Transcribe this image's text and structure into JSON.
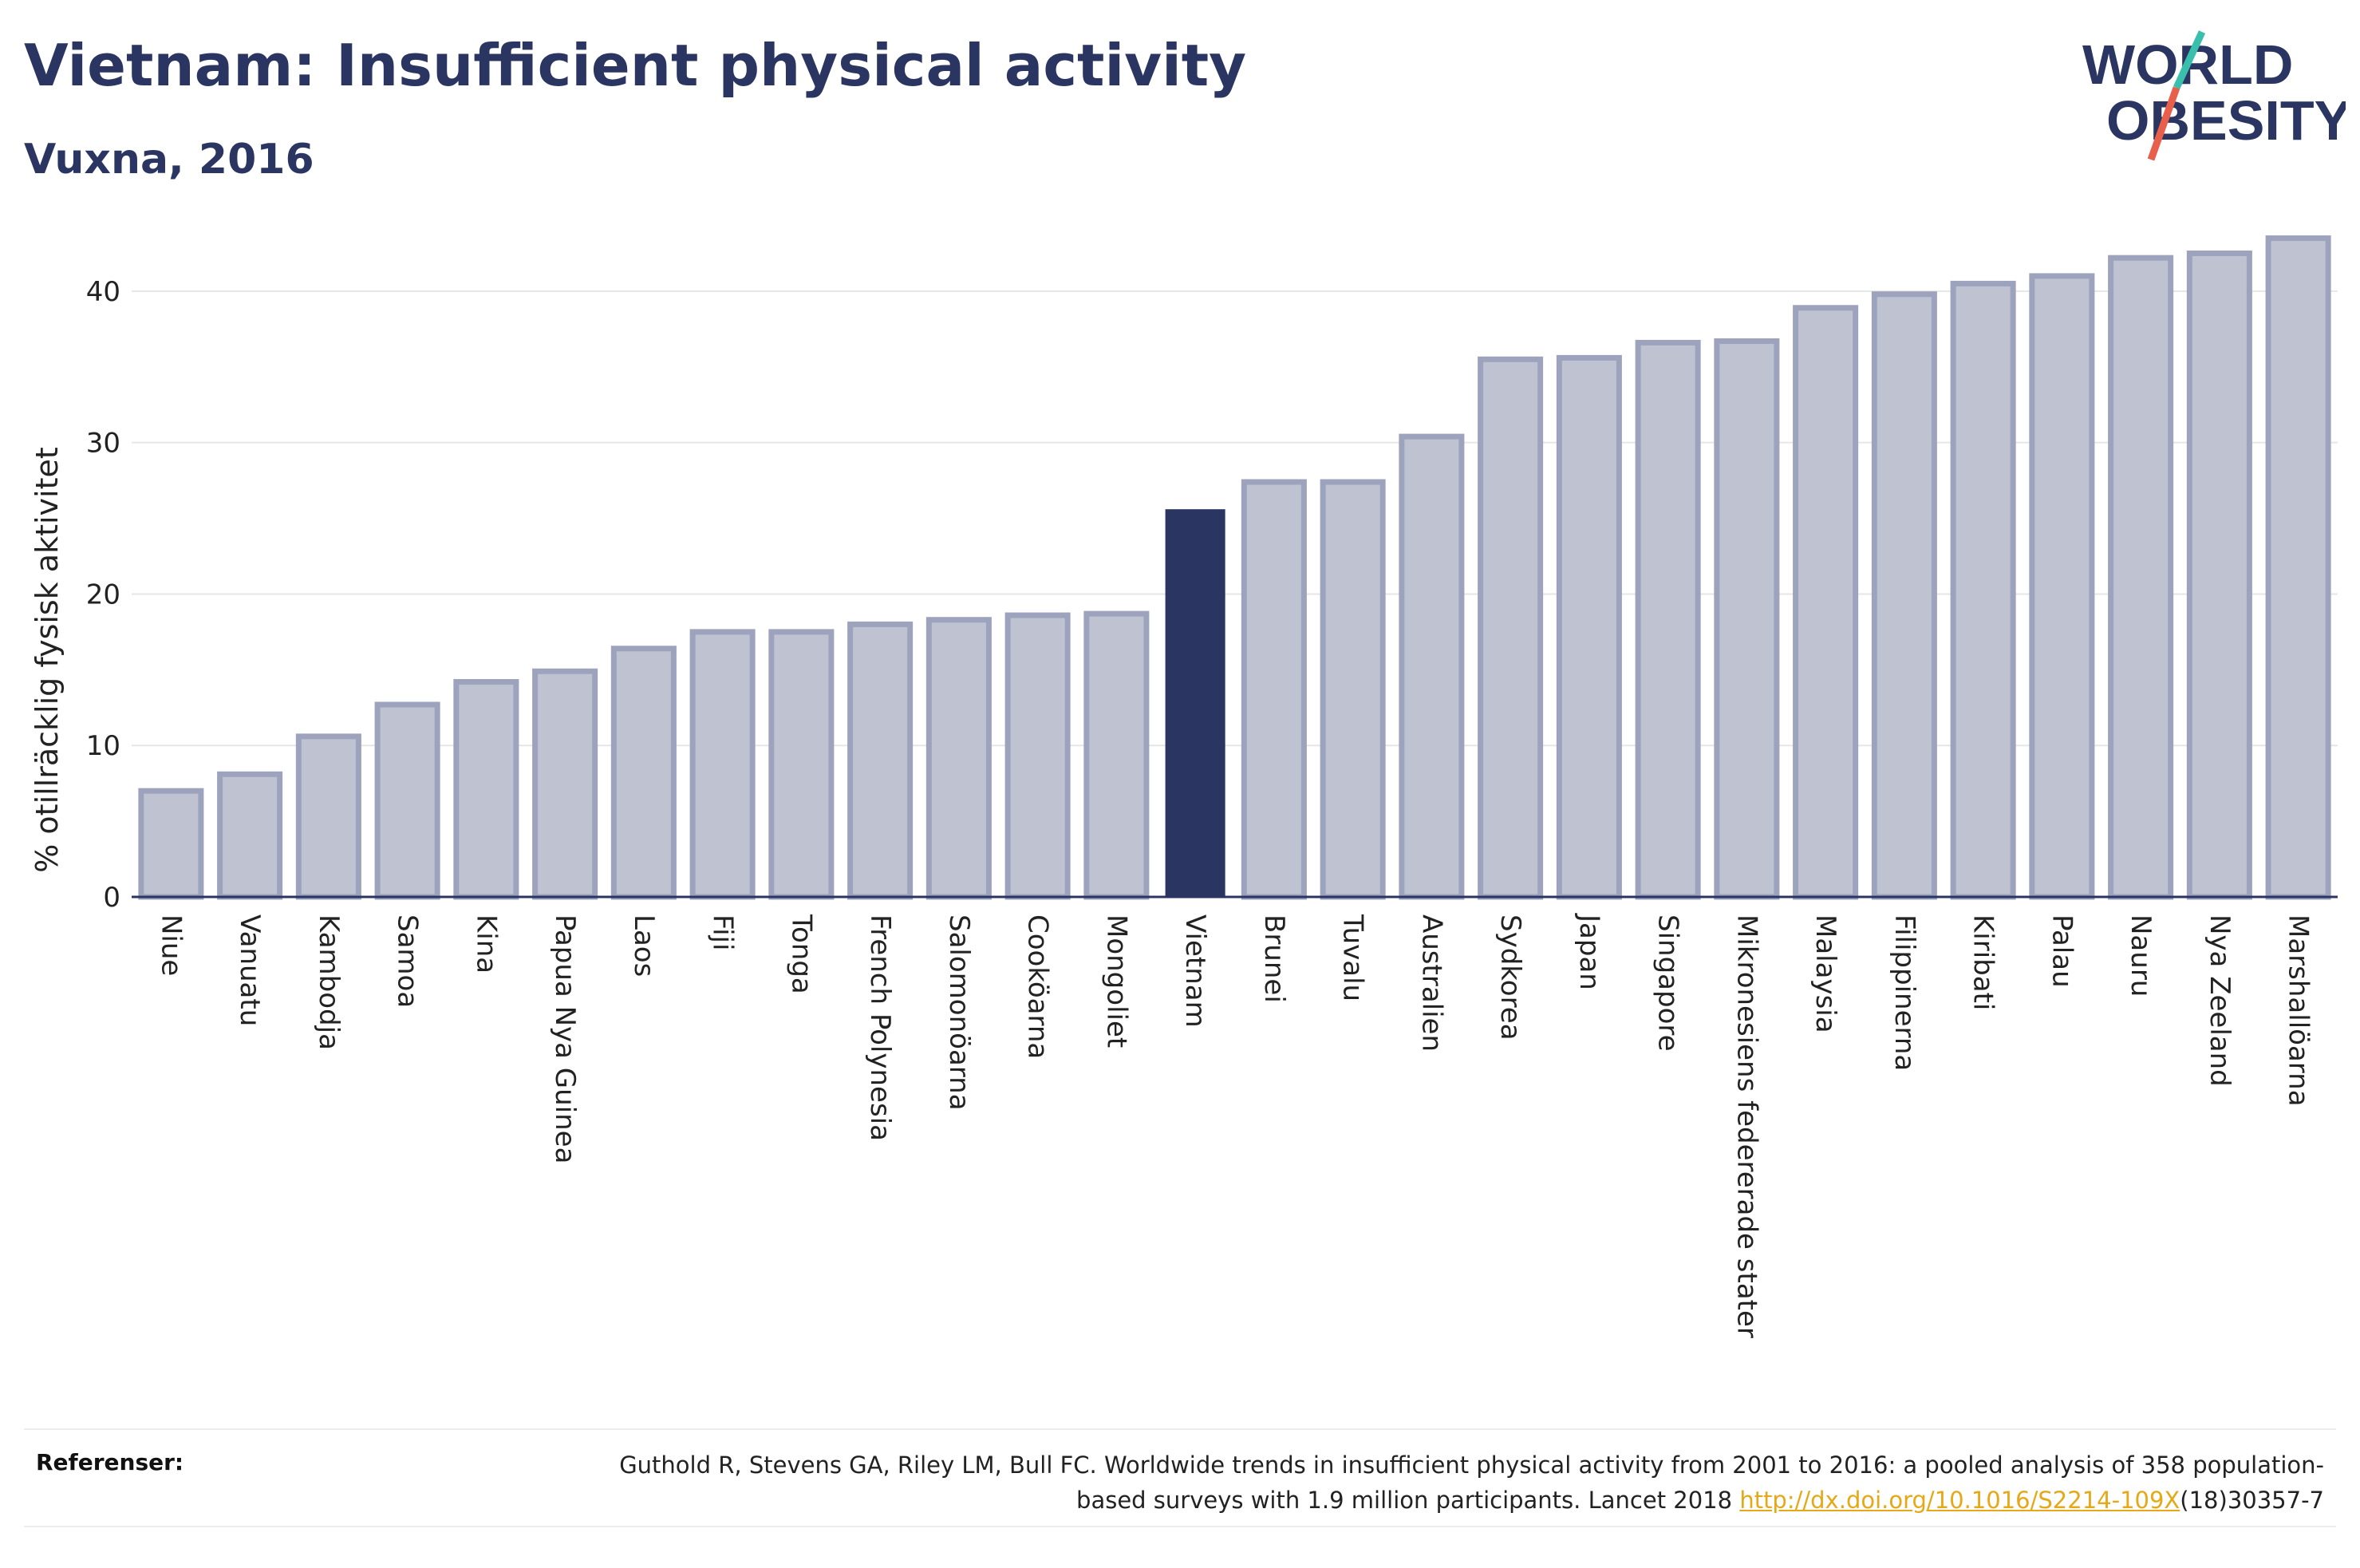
{
  "header": {
    "title": "Vietnam: Insufficient physical activity",
    "subtitle": "Vuxna, 2016"
  },
  "logo": {
    "line1": "WORLD",
    "line2": "OBESITY"
  },
  "chart_data": {
    "type": "bar",
    "title": "Vietnam: Insufficient physical activity",
    "subtitle": "Vuxna, 2016",
    "xlabel": "",
    "ylabel": "% otillräcklig fysisk aktivitet",
    "ylim": [
      0,
      45
    ],
    "yticks": [
      0,
      10,
      20,
      30,
      40
    ],
    "grid": true,
    "highlight": "Vietnam",
    "categories": [
      "Niue",
      "Vanuatu",
      "Kambodja",
      "Samoa",
      "Kina",
      "Papua Nya Guinea",
      "Laos",
      "Fiji",
      "Tonga",
      "French Polynesia",
      "Salomonöarna",
      "Cooköarna",
      "Mongoliet",
      "Vietnam",
      "Brunei",
      "Tuvalu",
      "Australien",
      "Sydkorea",
      "Japan",
      "Singapore",
      "Mikronesiens federerade stater",
      "Malaysia",
      "Filippinerna",
      "Kiribati",
      "Palau",
      "Nauru",
      "Nya Zeeland",
      "Marshallöarna"
    ],
    "values": [
      7.0,
      8.1,
      10.6,
      12.7,
      14.2,
      14.9,
      16.4,
      17.5,
      17.5,
      18.0,
      18.3,
      18.6,
      18.7,
      25.6,
      27.4,
      27.4,
      30.4,
      35.5,
      35.6,
      36.6,
      36.7,
      38.9,
      39.8,
      40.5,
      41.0,
      42.2,
      42.5,
      43.5
    ]
  },
  "colors": {
    "bar": "#bfc3d1",
    "bar_outline": "#9da3bc",
    "highlight": "#2b3562",
    "grid": "#e6e6e6",
    "logo_accent_teal": "#3bbfad",
    "logo_accent_red": "#e8604c",
    "link": "#e6a817"
  },
  "references": {
    "label": "Referenser:",
    "text_before": "Guthold R, Stevens GA, Riley LM, Bull FC. Worldwide trends in insufficient physical activity from 2001 to 2016: a pooled analysis of 358 population-based surveys with 1.9 million participants. Lancet 2018 ",
    "link": "http://dx.doi.org/10.1016/S2214-109X",
    "text_after": "(18)30357-7"
  }
}
